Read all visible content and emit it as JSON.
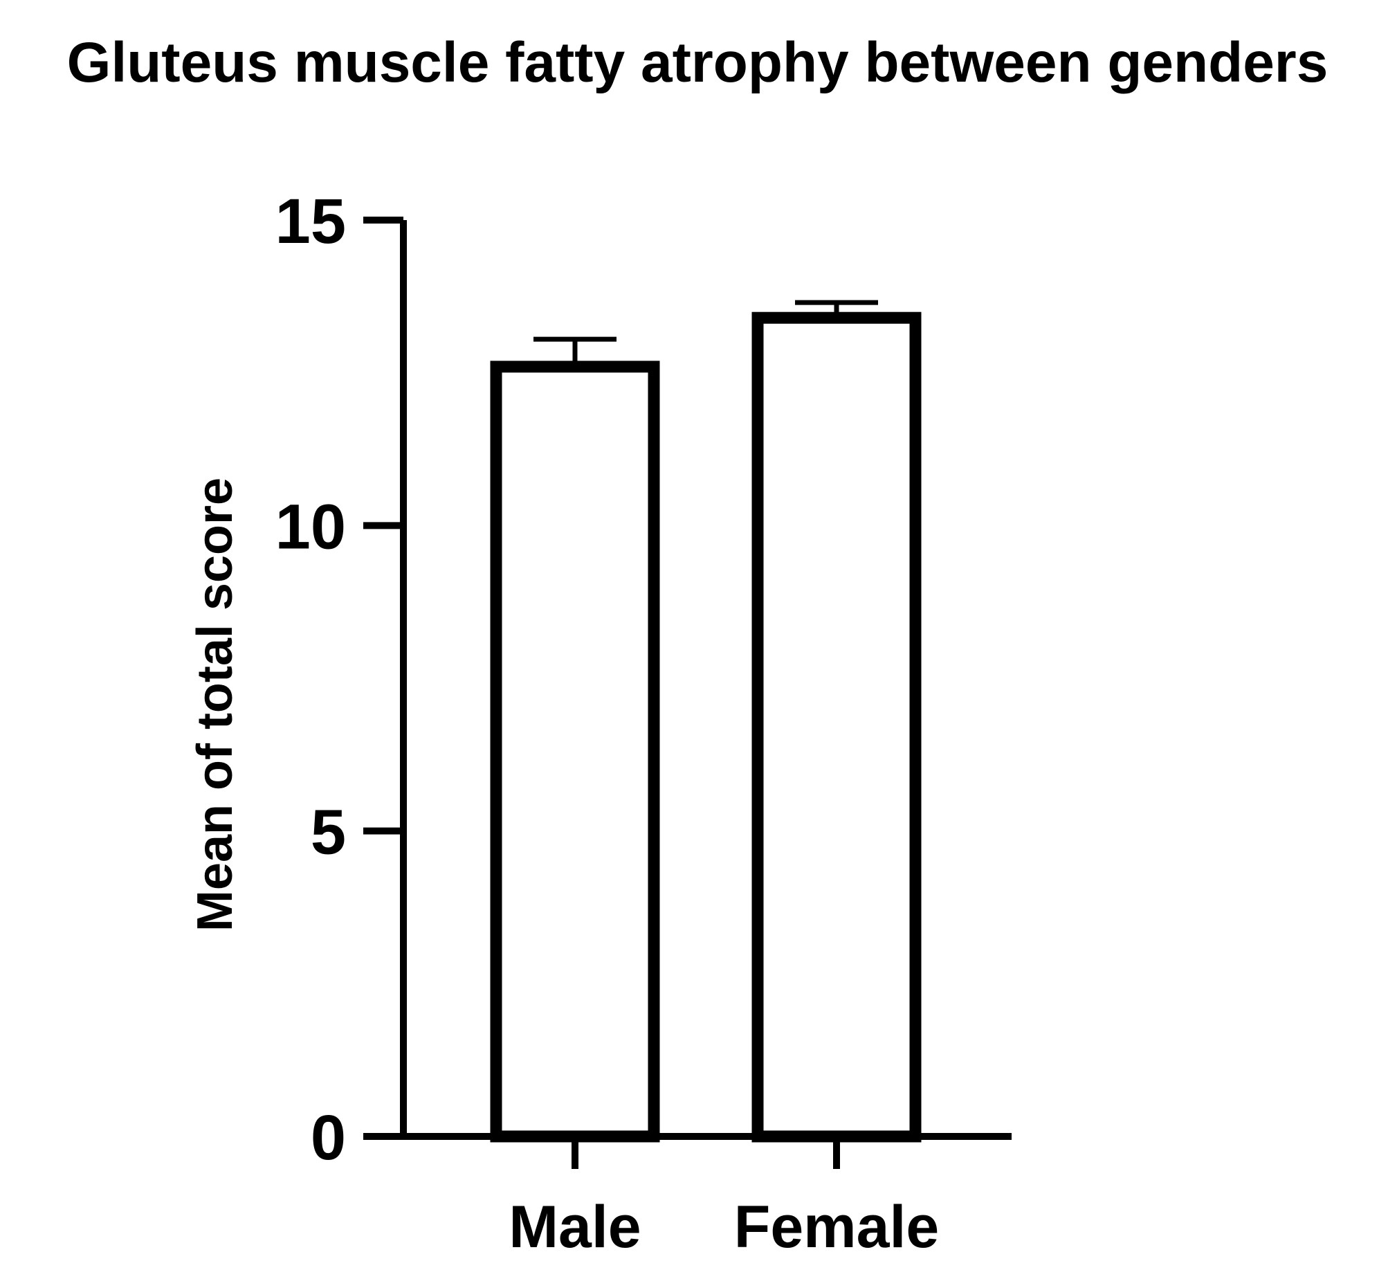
{
  "chart_data": {
    "type": "bar",
    "title": "Gluteus muscle fatty atrophy between genders",
    "xlabel": "",
    "ylabel": "Mean of total score",
    "categories": [
      "Male",
      "Female"
    ],
    "values": [
      12.6,
      13.4
    ],
    "error_bars": [
      0.45,
      0.25
    ],
    "ylim": [
      0,
      15
    ],
    "yticks": [
      0,
      5,
      10,
      15
    ],
    "grid": false,
    "legend": "none",
    "colors": {
      "bar_fill": "#ffffff",
      "bar_stroke": "#000000",
      "axis": "#000000"
    }
  }
}
